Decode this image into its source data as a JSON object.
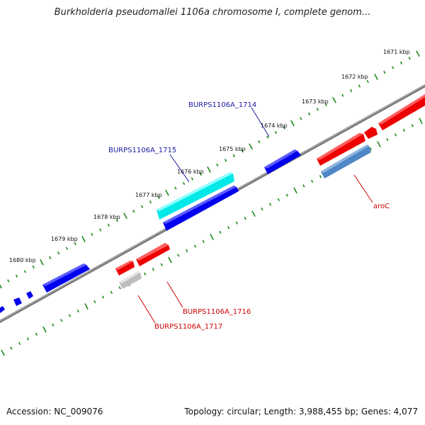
{
  "title": "Burkholderia pseudomallei 1106a chromosome I, complete genom...",
  "accession": "Accession: NC_009076",
  "summary": "Topology: circular; Length: 3,988,455 bp; Genes: 4,077",
  "scale_labels": [
    "1671 kbp",
    "1672 kbp",
    "1673 kbp",
    "1674 kbp",
    "1675 kbp",
    "1676 kbp",
    "1677 kbp",
    "1678 kbp",
    "1679 kbp",
    "1680 kbp"
  ],
  "gene_labels": {
    "g1714": "BURPS1106A_1714",
    "g1715": "BURPS1106A_1715",
    "aroC": "aroC",
    "g1716": "BURPS1106A_1716",
    "g1717": "BURPS1106A_1717"
  },
  "colors": {
    "forward_strand": "#0000ee",
    "reverse_strand": "#ee0000",
    "highlight": "#00e8e8",
    "steelblue": "#4f86c6",
    "pseudo": "#bdbdbd",
    "ticks": "#1a8a1a",
    "backbone": "#777777",
    "label_blue": "#1a1aa0",
    "label_red": "#cc0000"
  }
}
